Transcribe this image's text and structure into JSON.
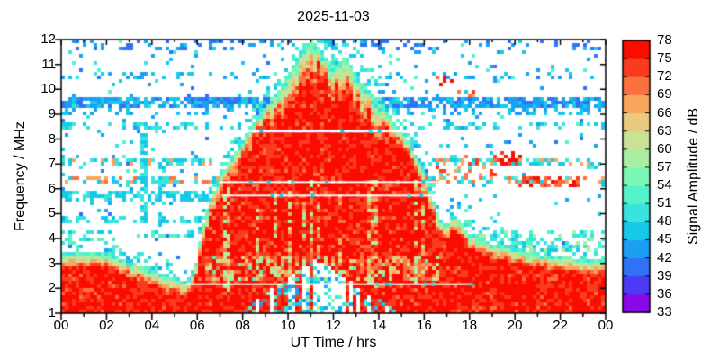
{
  "title": "2025-11-03",
  "x_axis": {
    "label": "UT Time / hrs",
    "tick_labels": [
      "00",
      "02",
      "04",
      "06",
      "08",
      "10",
      "12",
      "14",
      "16",
      "18",
      "20",
      "22",
      "00"
    ],
    "range_hours": [
      0,
      24
    ],
    "major_step_hours": 2,
    "minor_step_hours": 1
  },
  "y_axis": {
    "label": "Frequency / MHz",
    "tick_labels": [
      "1",
      "2",
      "3",
      "4",
      "5",
      "6",
      "7",
      "8",
      "9",
      "10",
      "11",
      "12"
    ],
    "range_mhz": [
      1,
      12
    ]
  },
  "colorbar": {
    "label": "Signal Amplitude / dB",
    "min_db": 33,
    "max_db": 78,
    "step_db": 3,
    "tick_labels": [
      "33",
      "36",
      "39",
      "42",
      "45",
      "48",
      "51",
      "54",
      "57",
      "60",
      "63",
      "66",
      "69",
      "72",
      "75",
      "78"
    ],
    "segment_colors_bottom_to_top": [
      "#8A07E9",
      "#4C3AF5",
      "#2F72F5",
      "#1B9FF2",
      "#17C9E9",
      "#39E3DE",
      "#55F2C9",
      "#7CF6B4",
      "#A9EFA3",
      "#C9E295",
      "#EACA7E",
      "#FAA55C",
      "#FB7140",
      "#FB3B1E",
      "#FA0C00"
    ]
  },
  "chart_data": {
    "type": "heatmap",
    "title": "2025-11-03",
    "xlabel": "UT Time / hrs",
    "ylabel": "Frequency / MHz",
    "zlabel": "Signal Amplitude / dB",
    "xlim": [
      0,
      24
    ],
    "ylim": [
      1,
      12
    ],
    "zlim": [
      33,
      78
    ],
    "grid": false,
    "legend_position": "right-colorbar",
    "description": "24-hour HF spectrogram: strong (75-78 dB, red) daytime ionospheric echo dome peaking at 12 MHz near 11 UT, persistent red noise band below ~3.4 MHz at night, scattered cyan/blue (39-48 dB) interference speckle, horizontal interference bands, and white data-gap lines.",
    "seed": 20251103,
    "palette_db_min": 33,
    "palette_db_step": 3,
    "envelope_mhz_by_ut": [
      [
        0,
        3.4
      ],
      [
        0.8,
        3.45
      ],
      [
        1.5,
        3.5
      ],
      [
        2,
        3.45
      ],
      [
        2.5,
        3.25
      ],
      [
        3,
        3.05
      ],
      [
        3.5,
        2.9
      ],
      [
        4,
        2.75
      ],
      [
        4.5,
        2.55
      ],
      [
        5,
        2.4
      ],
      [
        5.5,
        2.3
      ],
      [
        5.8,
        2.6
      ],
      [
        6,
        3.2
      ],
      [
        6.2,
        4.4
      ],
      [
        6.5,
        5.4
      ],
      [
        6.8,
        6.1
      ],
      [
        7,
        6.5
      ],
      [
        7.5,
        7.3
      ],
      [
        8,
        8.0
      ],
      [
        8.5,
        8.7
      ],
      [
        9,
        9.3
      ],
      [
        9.5,
        9.9
      ],
      [
        10,
        10.6
      ],
      [
        10.4,
        11.3
      ],
      [
        10.7,
        11.8
      ],
      [
        11,
        12.0
      ],
      [
        11.2,
        11.9
      ],
      [
        11.5,
        11.5
      ],
      [
        11.8,
        11.1
      ],
      [
        12,
        10.9
      ],
      [
        12.2,
        11.1
      ],
      [
        12.5,
        11.3
      ],
      [
        12.8,
        10.9
      ],
      [
        13,
        10.5
      ],
      [
        13.5,
        10.0
      ],
      [
        14,
        9.5
      ],
      [
        14.5,
        8.9
      ],
      [
        15,
        8.4
      ],
      [
        15.4,
        7.9
      ],
      [
        15.8,
        7.1
      ],
      [
        16.1,
        6.4
      ],
      [
        16.4,
        5.6
      ],
      [
        16.7,
        4.8
      ],
      [
        17,
        4.5
      ],
      [
        17.3,
        5.0
      ],
      [
        17.6,
        4.7
      ],
      [
        18,
        4.2
      ],
      [
        18.5,
        4.0
      ],
      [
        19,
        3.8
      ],
      [
        20,
        3.6
      ],
      [
        21,
        3.4
      ],
      [
        22,
        3.3
      ],
      [
        23,
        3.2
      ],
      [
        24,
        3.1
      ]
    ],
    "background_speckle": {
      "density": 0.055,
      "db_choices": [
        45,
        42,
        45,
        42,
        48,
        39,
        51
      ]
    },
    "halo_above_envelope": {
      "width_mhz": 0.55,
      "wide_window_ut": [
        9,
        16.5
      ],
      "wide_width_mhz": 1.1,
      "density": 0.3,
      "db_choices": [
        48,
        45,
        51
      ]
    },
    "bands": [
      {
        "f0": 9.25,
        "f1": 9.68,
        "t0": 0,
        "t1": 24,
        "density": 0.8,
        "db": [
          42,
          39,
          42,
          45
        ]
      },
      {
        "f0": 8.9,
        "f1": 9.2,
        "t0": 0,
        "t1": 24,
        "density": 0.22,
        "db": [
          42,
          45
        ]
      },
      {
        "f0": 8.35,
        "f1": 8.62,
        "t0": 0,
        "t1": 24,
        "density": 0.3,
        "db": [
          45,
          48
        ]
      },
      {
        "f0": 7.0,
        "f1": 7.28,
        "t0": 0,
        "t1": 24,
        "density": 0.5,
        "db": [
          45,
          48,
          45,
          66
        ]
      },
      {
        "f0": 6.15,
        "f1": 6.48,
        "t0": 0,
        "t1": 24,
        "density": 0.45,
        "db": [
          45,
          48,
          66,
          69
        ]
      },
      {
        "f0": 5.45,
        "f1": 5.85,
        "t0": 0,
        "t1": 7.5,
        "density": 0.6,
        "db": [
          45,
          48,
          45
        ]
      },
      {
        "f0": 4.6,
        "f1": 4.9,
        "t0": 0,
        "t1": 6.2,
        "density": 0.25,
        "db": [
          45,
          48
        ]
      },
      {
        "f0": 11.55,
        "f1": 12.0,
        "t0": 0,
        "t1": 24,
        "density": 0.16,
        "db": [
          42,
          39
        ]
      },
      {
        "f0": 10.35,
        "f1": 10.75,
        "t0": 0,
        "t1": 24,
        "density": 0.12,
        "db": [
          42,
          45
        ]
      },
      {
        "f0": 3.9,
        "f1": 4.4,
        "t0": 0,
        "t1": 5.8,
        "density": 0.3,
        "db": [
          45,
          48,
          51
        ]
      },
      {
        "f0": 3.4,
        "f1": 4.3,
        "t0": 18,
        "t1": 24,
        "density": 0.3,
        "db": [
          48,
          51,
          57
        ]
      },
      {
        "f0": 10.15,
        "f1": 10.55,
        "t0": 16.3,
        "t1": 17.3,
        "density": 0.5,
        "db": [
          72,
          69,
          75
        ]
      },
      {
        "f0": 9.7,
        "f1": 10.0,
        "t0": 17.3,
        "t1": 18.3,
        "density": 0.35,
        "db": [
          69,
          66,
          72
        ]
      },
      {
        "f0": 6.95,
        "f1": 7.45,
        "t0": 19.2,
        "t1": 20.3,
        "density": 0.55,
        "db": [
          75,
          72
        ]
      },
      {
        "f0": 6.1,
        "f1": 6.5,
        "t0": 20.0,
        "t1": 22.8,
        "density": 0.5,
        "db": [
          75,
          72,
          69
        ]
      },
      {
        "f0": 6.55,
        "f1": 7.4,
        "t0": 16.5,
        "t1": 19.2,
        "density": 0.3,
        "db": [
          66,
          69,
          48,
          72
        ]
      }
    ],
    "vertical_streaks": [
      {
        "t": 3.65,
        "f0": 4.6,
        "f1": 8.2,
        "density": 0.75,
        "db": [
          45,
          48
        ]
      },
      {
        "t": 4.42,
        "f0": 4.4,
        "f1": 7.1,
        "density": 0.55,
        "db": [
          45,
          48
        ]
      }
    ],
    "white_lines": [
      {
        "f_mhz": 8.32,
        "t0": 7.2,
        "t1": 16.2,
        "thickness_px": 3
      },
      {
        "f_mhz": 6.27,
        "t0": 6.95,
        "t1": 16.9,
        "thickness_px": 2
      },
      {
        "f_mhz": 5.73,
        "t0": 7.1,
        "t1": 16.6,
        "thickness_px": 2
      },
      {
        "f_mhz": 2.17,
        "t0": 5.5,
        "t1": 18.0,
        "thickness_px": 2
      }
    ],
    "absorption_gap": {
      "t0": 7.8,
      "t1": 14.8,
      "center_ut": 11.25,
      "half_width_ut": 3.4,
      "base_mhz": 1.15,
      "max_extra_mhz": 2.0,
      "speckle_db": [
        45,
        51,
        48,
        42,
        57
      ]
    },
    "daytime_light_streaks": {
      "t0": 7,
      "t1": 16,
      "f0": 1.9,
      "f1": 6.4,
      "column_fraction": 0.28,
      "db": [
        66,
        60,
        69,
        57
      ]
    },
    "daytime_lower_zone": {
      "t0": 6.3,
      "t1": 16.6,
      "f0": 2.25,
      "f1": 3.35,
      "db_mix": [
        72,
        69,
        75,
        66,
        63,
        57
      ]
    }
  }
}
